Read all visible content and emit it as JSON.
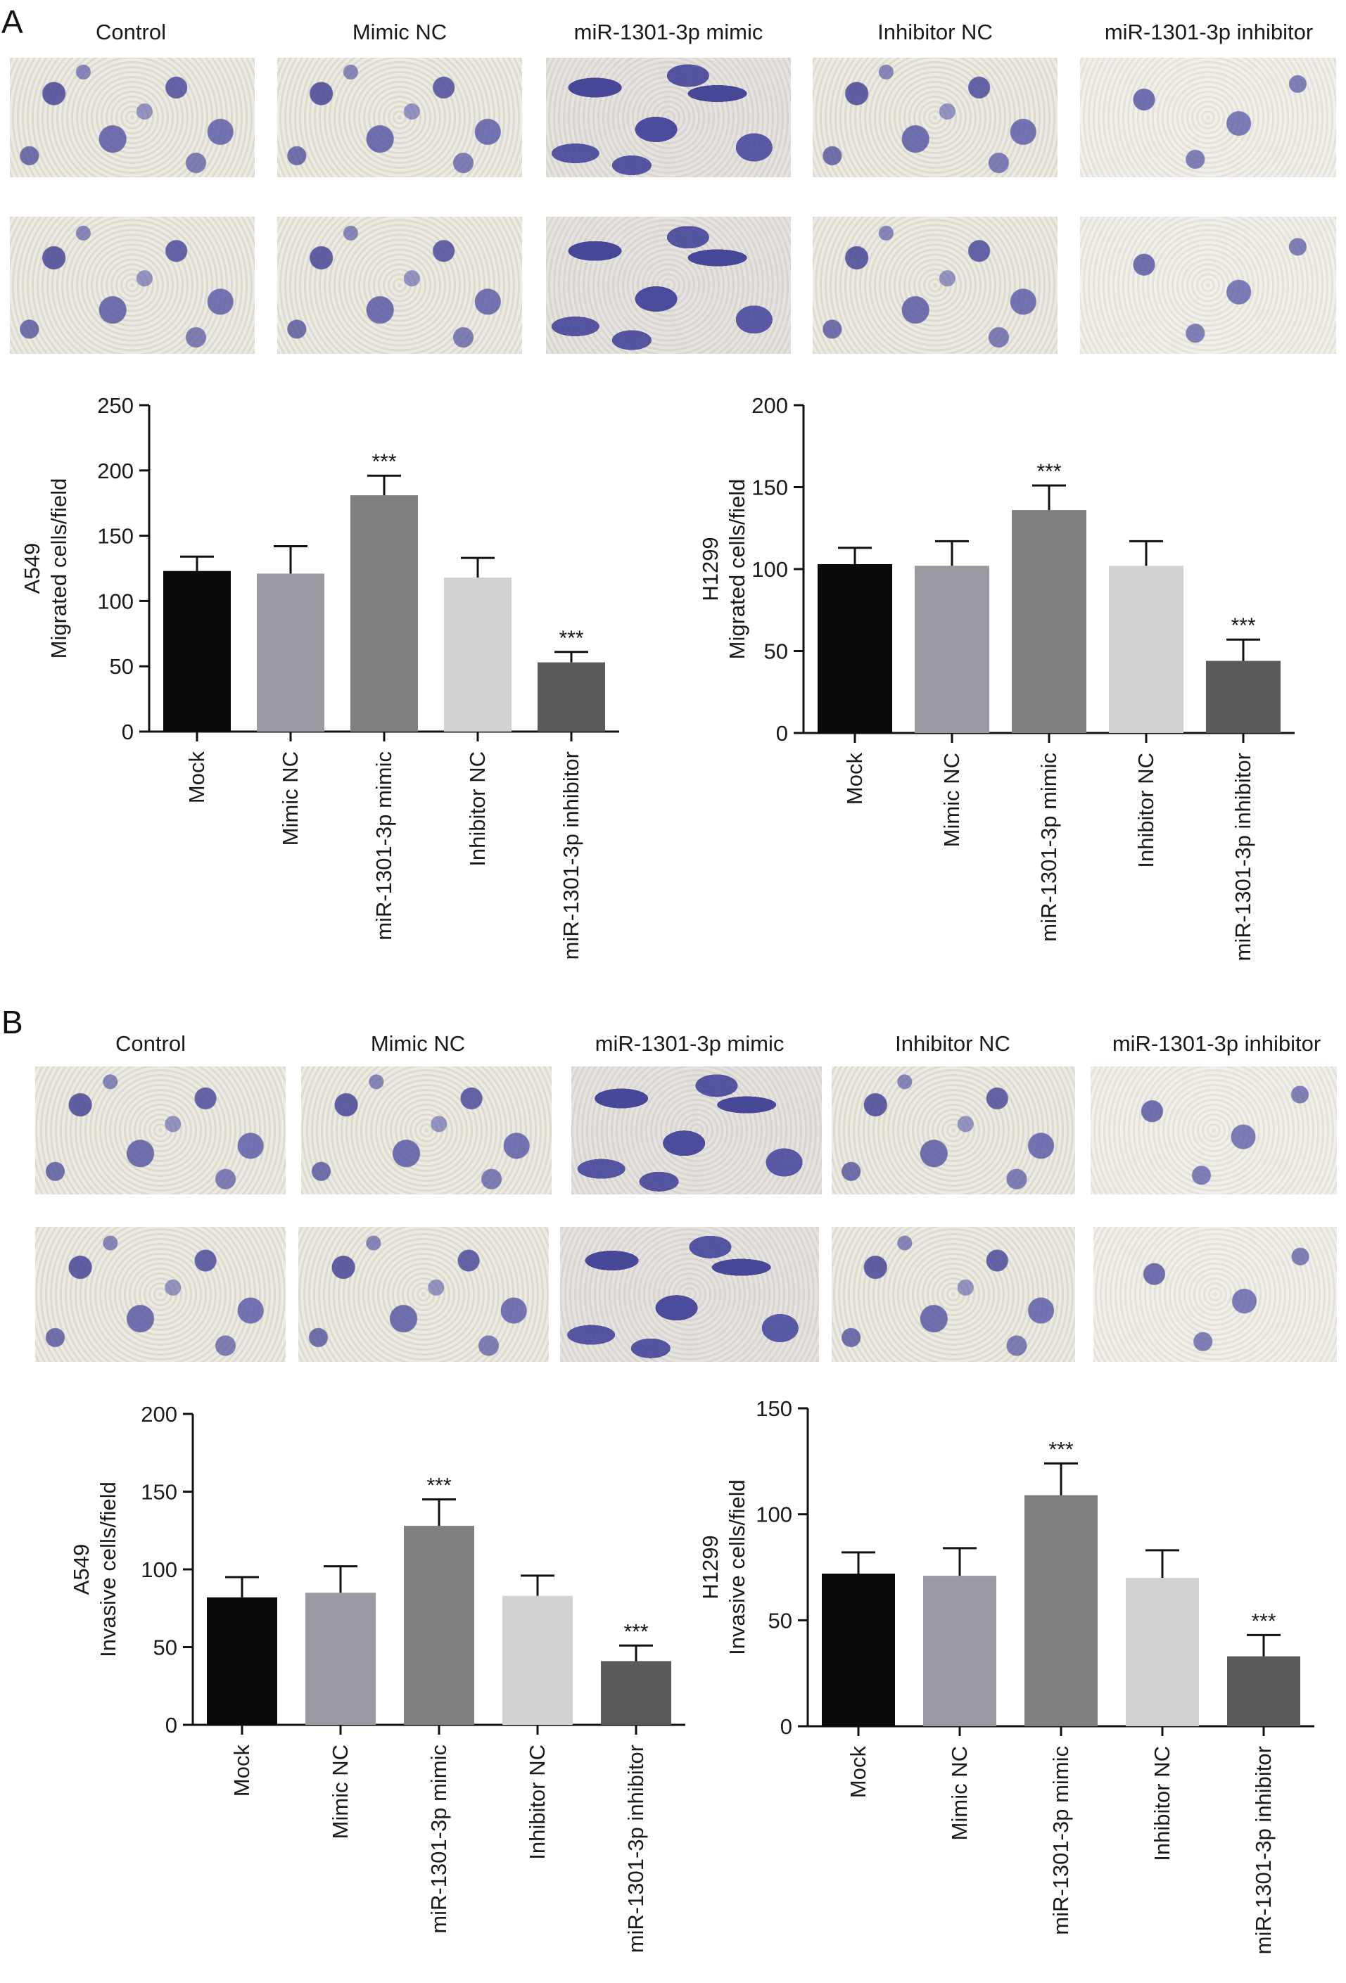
{
  "panels": [
    {
      "letter": "A",
      "column_titles": [
        "Control",
        "Mimic NC",
        "miR-1301-3p mimic",
        "Inhibitor NC",
        "miR-1301-3p inhibitor"
      ]
    },
    {
      "letter": "B",
      "column_titles": [
        "Control",
        "Mimic NC",
        "miR-1301-3p mimic",
        "Inhibitor NC",
        "miR-1301-3p inhibitor"
      ]
    }
  ],
  "image_description_note": "",
  "chart_data": [
    {
      "type": "bar",
      "categories": [
        "Mock",
        "Mimic NC",
        "miR-1301-3p mimic",
        "Inhibitor NC",
        "miR-1301-3p inhibitor"
      ],
      "values": [
        123,
        121,
        181,
        118,
        53
      ],
      "errors": [
        11,
        21,
        15,
        15,
        8
      ],
      "significance": [
        "",
        "",
        "***",
        "",
        "***"
      ],
      "ylabel_line1": "A549",
      "ylabel_line2": "Migrated cells/field",
      "ylim": [
        0,
        250
      ],
      "yticks": [
        0,
        50,
        100,
        150,
        200,
        250
      ],
      "bar_colors": [
        "#0a0a0a",
        "#9a9aa2",
        "#7f7f7f",
        "#d2d2d2",
        "#5a5a5a"
      ]
    },
    {
      "type": "bar",
      "categories": [
        "Mock",
        "Mimic NC",
        "miR-1301-3p mimic",
        "Inhibitor NC",
        "miR-1301-3p inhibitor"
      ],
      "values": [
        103,
        102,
        136,
        102,
        44
      ],
      "errors": [
        10,
        15,
        15,
        15,
        13
      ],
      "significance": [
        "",
        "",
        "***",
        "",
        "***"
      ],
      "ylabel_line1": "H1299",
      "ylabel_line2": "Migrated cells/field",
      "ylim": [
        0,
        200
      ],
      "yticks": [
        0,
        50,
        100,
        150,
        200
      ],
      "bar_colors": [
        "#0a0a0a",
        "#9a9aa2",
        "#7f7f7f",
        "#d2d2d2",
        "#5a5a5a"
      ]
    },
    {
      "type": "bar",
      "categories": [
        "Mock",
        "Mimic NC",
        "miR-1301-3p mimic",
        "Inhibitor NC",
        "miR-1301-3p inhibitor"
      ],
      "values": [
        82,
        85,
        128,
        83,
        41
      ],
      "errors": [
        13,
        17,
        17,
        13,
        10
      ],
      "significance": [
        "",
        "",
        "***",
        "",
        "***"
      ],
      "ylabel_line1": "A549",
      "ylabel_line2": "Invasive cells/field",
      "ylim": [
        0,
        200
      ],
      "yticks": [
        0,
        50,
        100,
        150,
        200
      ],
      "bar_colors": [
        "#0a0a0a",
        "#9a9aa2",
        "#7f7f7f",
        "#d2d2d2",
        "#5a5a5a"
      ]
    },
    {
      "type": "bar",
      "categories": [
        "Mock",
        "Mimic NC",
        "miR-1301-3p mimic",
        "Inhibitor NC",
        "miR-1301-3p inhibitor"
      ],
      "values": [
        72,
        71,
        109,
        70,
        33
      ],
      "errors": [
        10,
        13,
        15,
        13,
        10
      ],
      "significance": [
        "",
        "",
        "***",
        "",
        "***"
      ],
      "ylabel_line1": "H1299",
      "ylabel_line2": "Invasive cells/field",
      "ylim": [
        0,
        150
      ],
      "yticks": [
        0,
        50,
        100,
        150
      ],
      "bar_colors": [
        "#0a0a0a",
        "#9a9aa2",
        "#7f7f7f",
        "#d2d2d2",
        "#5a5a5a"
      ]
    }
  ]
}
